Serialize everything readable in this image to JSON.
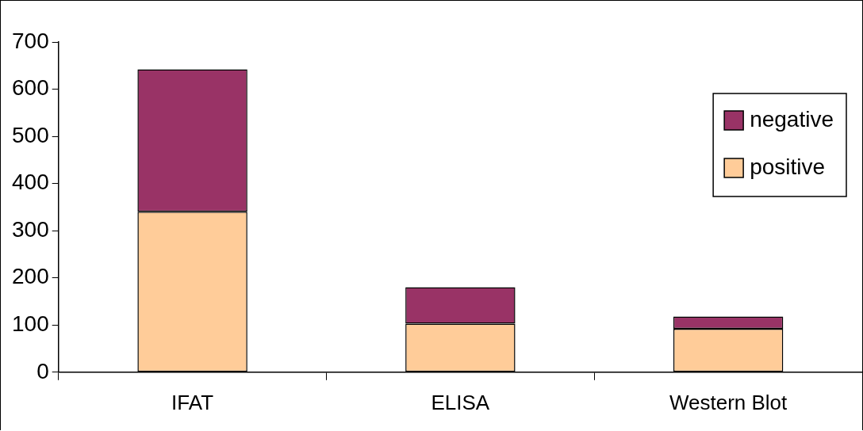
{
  "chart_data": {
    "type": "bar",
    "stacked": true,
    "categories": [
      "IFAT",
      "ELISA",
      "Western Blot"
    ],
    "series": [
      {
        "name": "positive",
        "color": "#ffcc99",
        "values": [
          340,
          103,
          92
        ]
      },
      {
        "name": "negative",
        "color": "#993366",
        "values": [
          302,
          77,
          26
        ]
      }
    ],
    "ylim": [
      0,
      700
    ],
    "yticks": [
      0,
      100,
      200,
      300,
      400,
      500,
      600,
      700
    ],
    "grid": false,
    "legend": "top right"
  }
}
